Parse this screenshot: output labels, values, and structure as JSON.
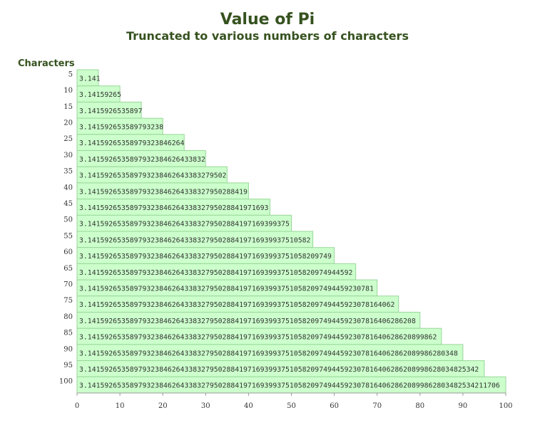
{
  "chart_data": {
    "type": "hbar",
    "title": "Value of Pi",
    "subtitle": "Truncated to various numbers of characters",
    "y_label": "Characters",
    "categories": [
      "5",
      "10",
      "15",
      "20",
      "25",
      "30",
      "35",
      "40",
      "45",
      "50",
      "55",
      "60",
      "65",
      "70",
      "75",
      "80",
      "85",
      "90",
      "95",
      "100"
    ],
    "values": [
      5,
      10,
      15,
      20,
      25,
      30,
      35,
      40,
      45,
      50,
      55,
      60,
      65,
      70,
      75,
      80,
      85,
      90,
      95,
      100
    ],
    "bar_labels": [
      "3.141",
      "3.14159265",
      "3.1415926535897",
      "3.141592653589793238",
      "3.14159265358979323846264",
      "3.1415926535897932384626433832",
      "3.141592653589793238462643383279502",
      "3.14159265358979323846264338327950288419",
      "3.1415926535897932384626433832795028841971693",
      "3.141592653589793238462643383279502884197169399375",
      "3.14159265358979323846264338327950288419716939937510582",
      "3.1415926535897932384626433832795028841971693993751058209749",
      "3.141592653589793238462643383279502884197169399375105820974944592",
      "3.14159265358979323846264338327950288419716939937510582097494459230781",
      "3.1415926535897932384626433832795028841971693993751058209749445923078164062",
      "3.141592653589793238462643383279502884197169399375105820974944592307816406286208",
      "3.14159265358979323846264338327950288419716939937510582097494459230781640628620899862",
      "3.1415926535897932384626433832795028841971693993751058209749445923078164062862089986280348",
      "3.141592653589793238462643383279502884197169399375105820974944592307816406286208998628034825342",
      "3.14159265358979323846264338327950288419716939937510582097494459230781640628620899862803482534211706"
    ],
    "color": "#ccffcc",
    "edge_color": "#99d699",
    "xlim": [
      0,
      100
    ],
    "xticks": [
      0,
      10,
      20,
      30,
      40,
      50,
      60,
      70,
      80,
      90,
      100
    ]
  }
}
